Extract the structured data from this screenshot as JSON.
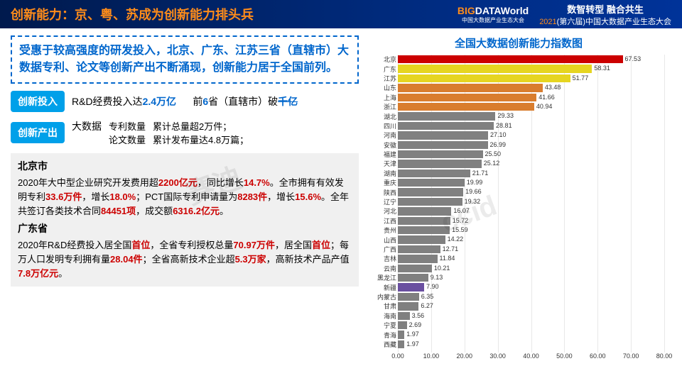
{
  "header": {
    "title": "创新能力：京、粤、苏成为创新能力排头兵",
    "logo_main_1": "BIG",
    "logo_main_2": "DATA",
    "logo_main_3": "World",
    "logo_sub": "中国大数据产业生态大会",
    "line1": "数智转型 融合共生",
    "line2_pre": "2021",
    "line2_mid": "(第六届)",
    "line2_post": "中国大数据产业生态大会"
  },
  "highlight": "受惠于较高强度的研发投入，北京、广东、江苏三省（直辖市）大数据专利、论文等创新产出不断涌现，创新能力居于全国前列。",
  "row1": {
    "tag": "创新投入",
    "t1_pre": "R&D经费投入达",
    "t1_val": "2.4万亿",
    "t2_pre": "前",
    "t2_val": "6",
    "t2_mid": "省（直辖市）破",
    "t2_val2": "千亿"
  },
  "row2": {
    "tag": "创新产出",
    "label": "大数据",
    "l1": "专利数量",
    "l2": "论文数量",
    "v1": "累计总量超2万件；",
    "v2": "累计发布量达4.8万篇；"
  },
  "beijing": {
    "title": "北京市",
    "p1_1": "2020年大中型企业研究开发费用超",
    "p1_v1": "2200亿元",
    "p1_2": "，同比增长",
    "p1_v2": "14.7%",
    "p1_3": "。全市拥有有效发明专利",
    "p1_v3": "33.6万件",
    "p1_4": "，增长",
    "p1_v4": "18.0%",
    "p1_5": "；PCT国际专利申请量为",
    "p1_v5": "8283件",
    "p1_6": "，增长",
    "p1_v6": "15.6%",
    "p1_7": "。全年共签订各类技术合同",
    "p1_v7": "84451项",
    "p1_8": "，成交额",
    "p1_v8": "6316.2亿元",
    "p1_9": "。"
  },
  "guangdong": {
    "title": "广东省",
    "p1_1": "2020年R&D经费投入居全国",
    "p1_v1": "首位",
    "p1_2": "，全省专利授权总量",
    "p1_v2": "70.97万件",
    "p1_3": "，居全国",
    "p1_v3": "首位",
    "p1_4": "；每万人口发明专利拥有量",
    "p1_v4": "28.04件",
    "p1_5": "；全省高新技术企业超",
    "p1_v5": "5.3万家",
    "p1_6": "，高新技术产品产值",
    "p1_v6": "7.8万亿元",
    "p1_7": "。"
  },
  "chart": {
    "title": "全国大数据创新能力指数图",
    "xmax": 80,
    "ticks": [
      "0.00",
      "10.00",
      "20.00",
      "30.00",
      "40.00",
      "50.00",
      "60.00",
      "70.00",
      "80.00"
    ],
    "bars": [
      {
        "label": "北京",
        "value": 67.53,
        "color": "#cc0000"
      },
      {
        "label": "广东",
        "value": 58.31,
        "color": "#e6d520"
      },
      {
        "label": "江苏",
        "value": 51.77,
        "color": "#e6d520"
      },
      {
        "label": "山东",
        "value": 43.48,
        "color": "#d97d2e"
      },
      {
        "label": "上海",
        "value": 41.66,
        "color": "#d97d2e"
      },
      {
        "label": "浙江",
        "value": 40.94,
        "color": "#d97d2e"
      },
      {
        "label": "湖北",
        "value": 29.33,
        "color": "#808080"
      },
      {
        "label": "四川",
        "value": 28.81,
        "color": "#808080"
      },
      {
        "label": "河南",
        "value": 27.1,
        "color": "#808080"
      },
      {
        "label": "安徽",
        "value": 26.99,
        "color": "#808080"
      },
      {
        "label": "福建",
        "value": 25.5,
        "color": "#808080"
      },
      {
        "label": "天津",
        "value": 25.12,
        "color": "#808080"
      },
      {
        "label": "湖南",
        "value": 21.71,
        "color": "#808080"
      },
      {
        "label": "重庆",
        "value": 19.99,
        "color": "#808080"
      },
      {
        "label": "陕西",
        "value": 19.66,
        "color": "#808080"
      },
      {
        "label": "辽宁",
        "value": 19.32,
        "color": "#808080"
      },
      {
        "label": "河北",
        "value": 16.07,
        "color": "#808080"
      },
      {
        "label": "江西",
        "value": 15.72,
        "color": "#808080"
      },
      {
        "label": "贵州",
        "value": 15.59,
        "color": "#808080"
      },
      {
        "label": "山西",
        "value": 14.22,
        "color": "#808080"
      },
      {
        "label": "广西",
        "value": 12.71,
        "color": "#808080"
      },
      {
        "label": "吉林",
        "value": 11.84,
        "color": "#808080"
      },
      {
        "label": "云南",
        "value": 10.21,
        "color": "#808080"
      },
      {
        "label": "黑龙江",
        "value": 9.13,
        "color": "#808080"
      },
      {
        "label": "新疆",
        "value": 7.9,
        "color": "#6a4fa0"
      },
      {
        "label": "内蒙古",
        "value": 6.35,
        "color": "#808080"
      },
      {
        "label": "甘肃",
        "value": 6.27,
        "color": "#808080"
      },
      {
        "label": "海南",
        "value": 3.56,
        "color": "#808080"
      },
      {
        "label": "宁夏",
        "value": 2.69,
        "color": "#808080"
      },
      {
        "label": "青海",
        "value": 1.97,
        "color": "#808080"
      },
      {
        "label": "西藏",
        "value": 1.97,
        "color": "#808080"
      }
    ]
  },
  "watermarks": [
    "ccid-赛迪",
    "赛迪",
    "ccid"
  ]
}
